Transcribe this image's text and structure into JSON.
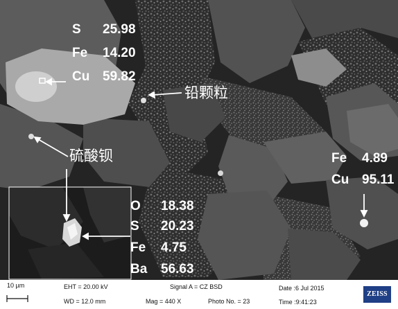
{
  "labels": {
    "particle_1": {
      "S": "25.98",
      "Fe": "14.20",
      "Cu": "59.82"
    },
    "lead_particle": "铅颗粒",
    "barium_sulfate": "硫酸钡",
    "particle_2": {
      "Fe": "4.89",
      "Cu": "95.11"
    },
    "particle_3": {
      "O": "18.38",
      "S": "20.23",
      "Fe": "4.75",
      "Ba": "56.63"
    },
    "elements": {
      "S": "S",
      "Fe": "Fe",
      "Cu": "Cu",
      "O": "O",
      "Ba": "Ba"
    }
  },
  "data_bar": {
    "scale_bar": "10 µm",
    "eht": "EHT = 20.00 kV",
    "wd": "WD = 12.0 mm",
    "signal": "Signal A = CZ BSD",
    "mag": "Mag =   440 X",
    "photo_no": "Photo No. = 23",
    "date": "Date :6 Jul 2015",
    "time": "Time :9:41:23",
    "logo": "ZEISS"
  },
  "colors": {
    "background_dark": "#232323",
    "grain_gray": "#5a5a5a",
    "bright_phase": "#b4b4b4",
    "label_text": "#ffffff",
    "logo_blue": "#1f3f86"
  }
}
